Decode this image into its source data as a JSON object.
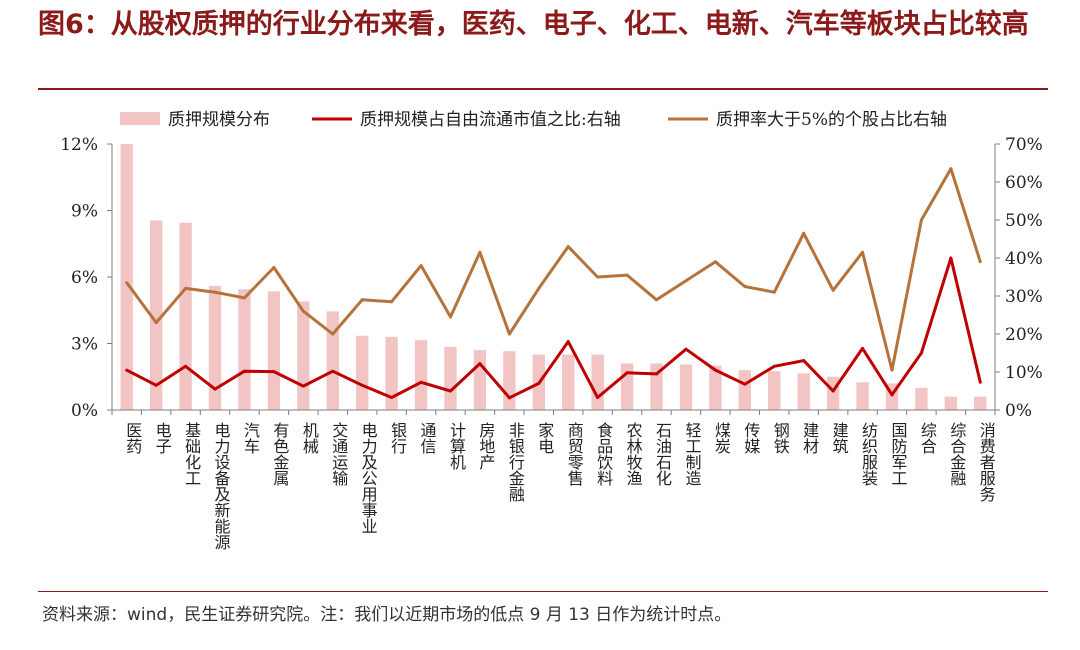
{
  "title": "图6：从股权质押的行业分布来看，医药、电子、化工、电新、汽车等板块占比较高",
  "source": "资料来源：wind，民生证券研究院。注：我们以近期市场的低点 9 月 13 日作为统计时点。",
  "chart_data": {
    "type": "bar+line",
    "categories": [
      "医药",
      "电子",
      "基础化工",
      "电力设备及新能源",
      "汽车",
      "有色金属",
      "机械",
      "交通运输",
      "电力及公用事业",
      "银行",
      "通信",
      "计算机",
      "房地产",
      "非银行金融",
      "家电",
      "商贸零售",
      "食品饮料",
      "农林牧渔",
      "石油石化",
      "轻工制造",
      "煤炭",
      "传媒",
      "钢铁",
      "建材",
      "建筑",
      "纺织服装",
      "国防军工",
      "综合",
      "综合金融",
      "消费者服务"
    ],
    "series": [
      {
        "name": "质押规模分布",
        "type": "bar",
        "axis": "left",
        "color": "#F2C4C4",
        "values": [
          12.0,
          8.55,
          8.45,
          5.6,
          5.45,
          5.35,
          4.9,
          4.45,
          3.35,
          3.3,
          3.15,
          2.85,
          2.7,
          2.65,
          2.5,
          2.5,
          2.5,
          2.1,
          2.1,
          2.05,
          2.0,
          1.8,
          1.75,
          1.65,
          1.5,
          1.25,
          1.2,
          1.0,
          0.6,
          0.6
        ]
      },
      {
        "name": "质押规模占自由流通市值之比:右轴",
        "type": "line",
        "axis": "right",
        "color": "#C00000",
        "values": [
          10.5,
          6.5,
          11.5,
          5.5,
          10.2,
          10.1,
          6.3,
          10.2,
          6.5,
          3.3,
          7.3,
          5.0,
          12.2,
          3.2,
          7.0,
          18.0,
          3.3,
          9.8,
          9.5,
          16.0,
          10.5,
          6.8,
          11.5,
          13.0,
          5.0,
          16.2,
          4.0,
          15.0,
          40.0,
          7.3
        ]
      },
      {
        "name": "质押率大于5%的个股占比右轴",
        "type": "line",
        "axis": "right",
        "color": "#B5733C",
        "values": [
          33.5,
          23.0,
          32.0,
          31.0,
          29.5,
          37.5,
          26.0,
          20.0,
          29.0,
          28.5,
          38.0,
          24.5,
          41.5,
          20.0,
          32.0,
          43.0,
          35.0,
          35.5,
          29.0,
          34.0,
          39.0,
          32.5,
          31.0,
          46.5,
          31.5,
          41.5,
          10.5,
          50.0,
          63.5,
          39.0
        ]
      }
    ],
    "y_left": {
      "min": 0,
      "max": 12,
      "ticks": [
        "0%",
        "3%",
        "6%",
        "9%",
        "12%"
      ],
      "tick_values": [
        0,
        3,
        6,
        9,
        12
      ]
    },
    "y_right": {
      "min": 0,
      "max": 70,
      "ticks": [
        "0%",
        "10%",
        "20%",
        "30%",
        "40%",
        "50%",
        "60%",
        "70%"
      ],
      "tick_values": [
        0,
        10,
        20,
        30,
        40,
        50,
        60,
        70
      ]
    },
    "grid": false,
    "legend": "top"
  },
  "colors": {
    "title": "#8B1A1A",
    "axis": "#7f7f7f",
    "text": "#222222"
  }
}
